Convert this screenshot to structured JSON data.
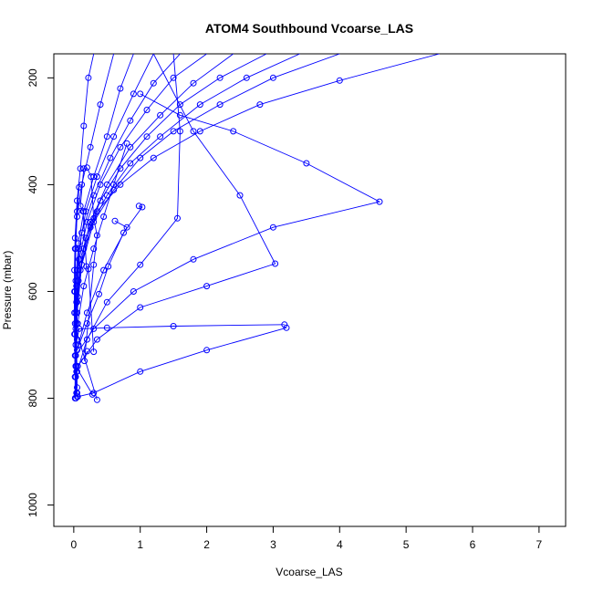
{
  "chart_data": {
    "type": "line",
    "title": "ATOM4 Southbound Vcoarse_LAS",
    "xlabel": "Vcoarse_LAS",
    "ylabel": "Pressure (mbar)",
    "xlim": [
      -0.3,
      7.4
    ],
    "ylim": [
      1040,
      155
    ],
    "y_reversed": true,
    "grid": false,
    "legend": "none",
    "color": "#0000ff",
    "x_ticks": [
      0,
      1,
      2,
      3,
      4,
      5,
      6,
      7
    ],
    "y_ticks": [
      200,
      400,
      600,
      800,
      1000
    ],
    "x_tick_labels": [
      "0",
      "1",
      "2",
      "3",
      "4",
      "5",
      "6",
      "7"
    ],
    "y_tick_labels": [
      "200",
      "400",
      "600",
      "800",
      "1000"
    ],
    "series": [
      {
        "values": [
          [
            0.3,
            155
          ],
          [
            0.22,
            200
          ],
          [
            0.15,
            290
          ],
          [
            0.1,
            370
          ],
          [
            0.05,
            430
          ],
          [
            0.02,
            500
          ],
          [
            0.01,
            560
          ],
          [
            0.01,
            640
          ],
          [
            0.02,
            720
          ],
          [
            0.03,
            800
          ]
        ]
      },
      {
        "values": [
          [
            0.6,
            155
          ],
          [
            0.4,
            250
          ],
          [
            0.25,
            330
          ],
          [
            0.12,
            400
          ],
          [
            0.05,
            460
          ],
          [
            0.02,
            520
          ],
          [
            0.01,
            600
          ],
          [
            0.01,
            680
          ],
          [
            0.02,
            760
          ],
          [
            0.05,
            797
          ]
        ]
      },
      {
        "values": [
          [
            0.9,
            155
          ],
          [
            0.7,
            220
          ],
          [
            0.5,
            310
          ],
          [
            0.3,
            385
          ],
          [
            0.15,
            450
          ],
          [
            0.07,
            510
          ],
          [
            0.03,
            580
          ],
          [
            0.02,
            660
          ],
          [
            0.03,
            740
          ],
          [
            0.28,
            793
          ]
        ]
      },
      {
        "values": [
          [
            1.2,
            155
          ],
          [
            0.9,
            230
          ],
          [
            0.6,
            310
          ],
          [
            0.35,
            385
          ],
          [
            0.18,
            450
          ],
          [
            0.08,
            520
          ],
          [
            0.04,
            590
          ],
          [
            0.03,
            670
          ],
          [
            0.35,
            803
          ]
        ]
      },
      {
        "values": [
          [
            1.6,
            155
          ],
          [
            1.2,
            210
          ],
          [
            0.85,
            280
          ],
          [
            0.55,
            350
          ],
          [
            0.3,
            420
          ],
          [
            0.12,
            490
          ],
          [
            0.05,
            560
          ],
          [
            0.03,
            640
          ],
          [
            0.03,
            760
          ]
        ]
      },
      {
        "values": [
          [
            2.0,
            155
          ],
          [
            1.5,
            200
          ],
          [
            1.1,
            260
          ],
          [
            0.7,
            330
          ],
          [
            0.4,
            400
          ],
          [
            0.2,
            470
          ],
          [
            0.08,
            540
          ],
          [
            0.04,
            620
          ],
          [
            0.03,
            720
          ],
          [
            0.04,
            790
          ]
        ]
      },
      {
        "values": [
          [
            2.4,
            155
          ],
          [
            1.8,
            210
          ],
          [
            1.3,
            270
          ],
          [
            0.85,
            330
          ],
          [
            0.5,
            400
          ],
          [
            0.25,
            470
          ],
          [
            0.1,
            540
          ],
          [
            0.05,
            620
          ],
          [
            0.03,
            700
          ],
          [
            0.05,
            790
          ]
        ]
      },
      {
        "values": [
          [
            2.9,
            155
          ],
          [
            2.2,
            200
          ],
          [
            1.6,
            250
          ],
          [
            1.1,
            310
          ],
          [
            0.7,
            370
          ],
          [
            0.4,
            430
          ],
          [
            0.18,
            500
          ],
          [
            0.07,
            580
          ],
          [
            0.04,
            660
          ],
          [
            0.05,
            780
          ]
        ]
      },
      {
        "values": [
          [
            3.4,
            155
          ],
          [
            2.6,
            200
          ],
          [
            1.9,
            250
          ],
          [
            1.3,
            310
          ],
          [
            0.85,
            360
          ],
          [
            0.5,
            420
          ],
          [
            0.25,
            480
          ],
          [
            0.1,
            560
          ],
          [
            0.05,
            640
          ],
          [
            0.04,
            750
          ]
        ]
      },
      {
        "values": [
          [
            4.0,
            155
          ],
          [
            3.0,
            200
          ],
          [
            2.2,
            250
          ],
          [
            1.5,
            300
          ],
          [
            1.0,
            350
          ],
          [
            0.6,
            410
          ],
          [
            0.3,
            470
          ],
          [
            0.12,
            550
          ],
          [
            0.05,
            640
          ],
          [
            0.04,
            740
          ]
        ]
      },
      {
        "values": [
          [
            5.5,
            155
          ],
          [
            4.0,
            205
          ],
          [
            2.8,
            250
          ],
          [
            1.9,
            300
          ],
          [
            1.2,
            350
          ],
          [
            0.7,
            400
          ],
          [
            0.35,
            450
          ],
          [
            0.15,
            520
          ],
          [
            0.06,
            610
          ],
          [
            0.03,
            740
          ]
        ]
      },
      {
        "values": [
          [
            1.0,
            230
          ],
          [
            1.6,
            270
          ],
          [
            2.4,
            300
          ],
          [
            3.5,
            360
          ],
          [
            4.6,
            432
          ],
          [
            3.0,
            480
          ],
          [
            1.8,
            540
          ],
          [
            0.9,
            600
          ],
          [
            0.3,
            670
          ],
          [
            0.03,
            720
          ]
        ]
      },
      {
        "values": [
          [
            1.5,
            155
          ],
          [
            1.6,
            300
          ],
          [
            1.56,
            463
          ],
          [
            1.0,
            550
          ],
          [
            0.5,
            620
          ],
          [
            0.2,
            690
          ],
          [
            0.05,
            750
          ],
          [
            0.03,
            800
          ]
        ]
      },
      {
        "values": [
          [
            1.2,
            155
          ],
          [
            1.8,
            300
          ],
          [
            2.5,
            420
          ],
          [
            3.03,
            548
          ],
          [
            2.0,
            590
          ],
          [
            1.0,
            630
          ],
          [
            0.35,
            690
          ],
          [
            0.06,
            740
          ]
        ]
      },
      {
        "values": [
          [
            3.17,
            662
          ],
          [
            1.5,
            665
          ],
          [
            0.5,
            668
          ],
          [
            0.08,
            670
          ],
          [
            0.05,
            690
          ]
        ]
      },
      {
        "values": [
          [
            3.2,
            668
          ],
          [
            2.0,
            710
          ],
          [
            1.0,
            750
          ],
          [
            0.3,
            790
          ],
          [
            0.06,
            797
          ]
        ]
      },
      {
        "values": [
          [
            0.8,
            323
          ],
          [
            0.6,
            400
          ],
          [
            0.45,
            460
          ],
          [
            0.3,
            520
          ],
          [
            0.15,
            590
          ],
          [
            0.06,
            660
          ]
        ]
      },
      {
        "values": [
          [
            0.98,
            440
          ],
          [
            1.03,
            442
          ],
          [
            0.75,
            490
          ],
          [
            0.52,
            553
          ],
          [
            0.38,
            605
          ],
          [
            0.2,
            660
          ],
          [
            0.05,
            710
          ]
        ]
      },
      {
        "values": [
          [
            0.62,
            468
          ],
          [
            0.8,
            480
          ],
          [
            0.45,
            560
          ],
          [
            0.2,
            640
          ],
          [
            0.07,
            700
          ]
        ]
      },
      {
        "values": [
          [
            0.2,
            368
          ],
          [
            0.26,
            385
          ],
          [
            0.3,
            463
          ],
          [
            0.35,
            495
          ],
          [
            0.3,
            550
          ],
          [
            0.16,
            730
          ],
          [
            0.2,
            712
          ]
        ]
      },
      {
        "values": [
          [
            0.15,
            370
          ],
          [
            0.1,
            440
          ],
          [
            0.14,
            450
          ],
          [
            0.19,
            553
          ],
          [
            0.22,
            558
          ],
          [
            0.3,
            713
          ]
        ]
      },
      {
        "values": [
          [
            0.08,
            405
          ],
          [
            0.05,
            450
          ],
          [
            0.03,
            520
          ],
          [
            0.02,
            600
          ],
          [
            0.02,
            680
          ],
          [
            0.02,
            760
          ],
          [
            0.02,
            800
          ]
        ]
      }
    ]
  }
}
